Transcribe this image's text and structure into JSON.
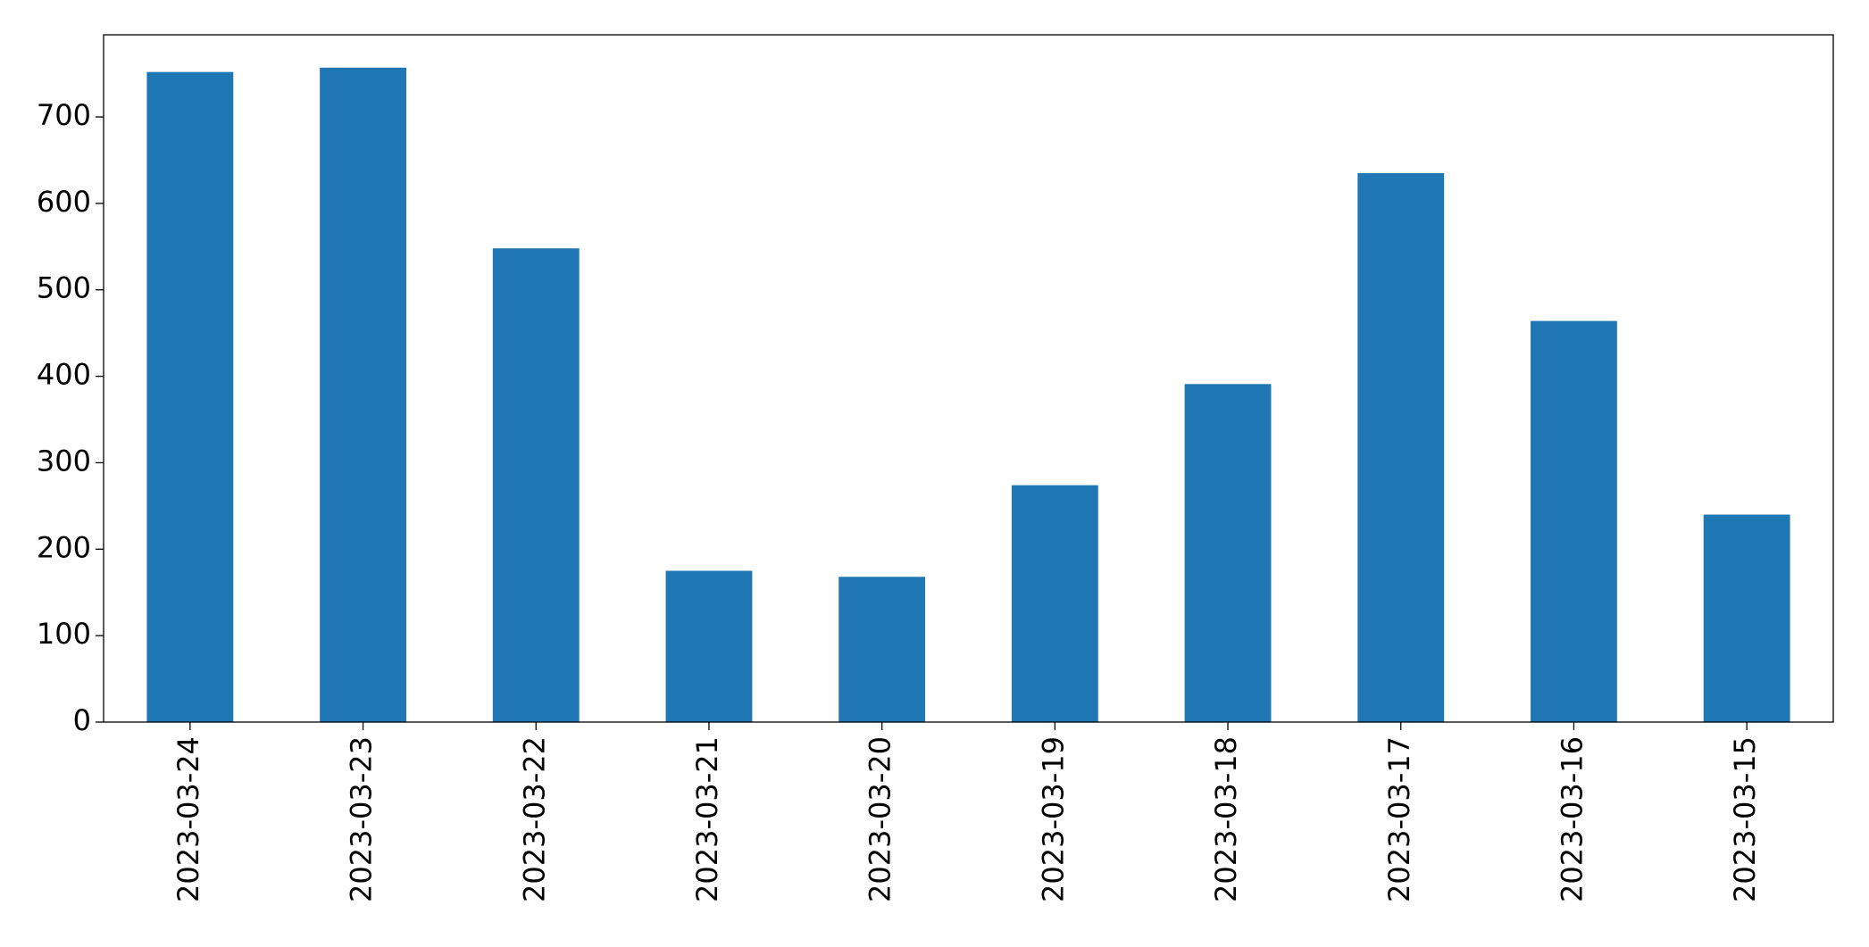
{
  "chart_data": {
    "type": "bar",
    "categories": [
      "2023-03-24",
      "2023-03-23",
      "2023-03-22",
      "2023-03-21",
      "2023-03-20",
      "2023-03-19",
      "2023-03-18",
      "2023-03-17",
      "2023-03-16",
      "2023-03-15"
    ],
    "values": [
      752,
      757,
      548,
      175,
      168,
      274,
      391,
      635,
      464,
      240
    ],
    "color": "#1f77b4",
    "ylim": [
      0,
      795
    ],
    "yticks": [
      0,
      100,
      200,
      300,
      400,
      500,
      600,
      700
    ],
    "grid": false
  }
}
